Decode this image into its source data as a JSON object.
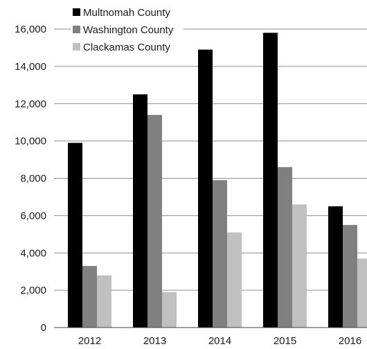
{
  "chart_data": {
    "type": "bar",
    "categories": [
      "2012",
      "2013",
      "2014",
      "2015",
      "2016"
    ],
    "series": [
      {
        "name": "Multnomah County",
        "color": "#000000",
        "values": [
          9900,
          12500,
          14900,
          15800,
          6500
        ]
      },
      {
        "name": "Washington County",
        "color": "#808080",
        "values": [
          3300,
          11400,
          7900,
          8600,
          5500
        ]
      },
      {
        "name": "Clackamas County",
        "color": "#c0c0c0",
        "values": [
          2800,
          1900,
          5100,
          6600,
          3700
        ]
      }
    ],
    "ylim": [
      0,
      16000
    ],
    "yticks": [
      "0",
      "2,000",
      "4,000",
      "6,000",
      "8,000",
      "10,000",
      "12,000",
      "14,000",
      "16,000"
    ],
    "grid": true,
    "legend_position": "top-left",
    "title": "",
    "xlabel": "",
    "ylabel": ""
  }
}
